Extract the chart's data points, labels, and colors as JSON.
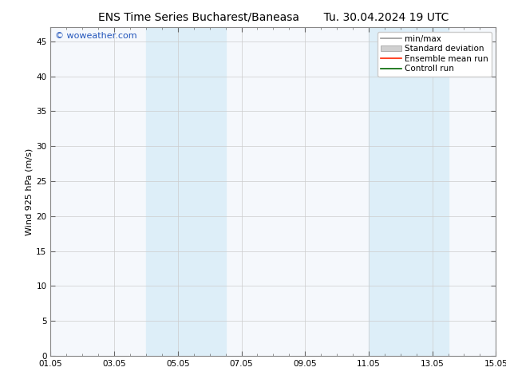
{
  "title_left": "ENS Time Series Bucharest/Baneasa",
  "title_right": "Tu. 30.04.2024 19 UTC",
  "ylabel": "Wind 925 hPa (m/s)",
  "ylim": [
    0,
    47
  ],
  "yticks": [
    0,
    5,
    10,
    15,
    20,
    25,
    30,
    35,
    40,
    45
  ],
  "xlim": [
    0,
    14
  ],
  "xtick_labels": [
    "01.05",
    "03.05",
    "05.05",
    "07.05",
    "09.05",
    "11.05",
    "13.05",
    "15.05"
  ],
  "xtick_positions": [
    0,
    2,
    4,
    6,
    8,
    10,
    12,
    14
  ],
  "shaded_bands": [
    {
      "x_start": 3.0,
      "x_end": 5.5
    },
    {
      "x_start": 10.0,
      "x_end": 12.5
    }
  ],
  "shaded_color": "#ddeef8",
  "plot_bg_color": "#f5f8fc",
  "background_color": "#ffffff",
  "grid_color": "#cccccc",
  "watermark_text": "© woweather.com",
  "watermark_color": "#2255bb",
  "legend_entries": [
    {
      "label": "min/max",
      "color": "#aaaaaa"
    },
    {
      "label": "Standard deviation",
      "color": "#cccccc"
    },
    {
      "label": "Ensemble mean run",
      "color": "#ff0000"
    },
    {
      "label": "Controll run",
      "color": "#008000"
    }
  ],
  "font_size_title": 10,
  "font_size_ticks": 7.5,
  "font_size_ylabel": 8,
  "font_size_legend": 7.5,
  "font_size_watermark": 8
}
